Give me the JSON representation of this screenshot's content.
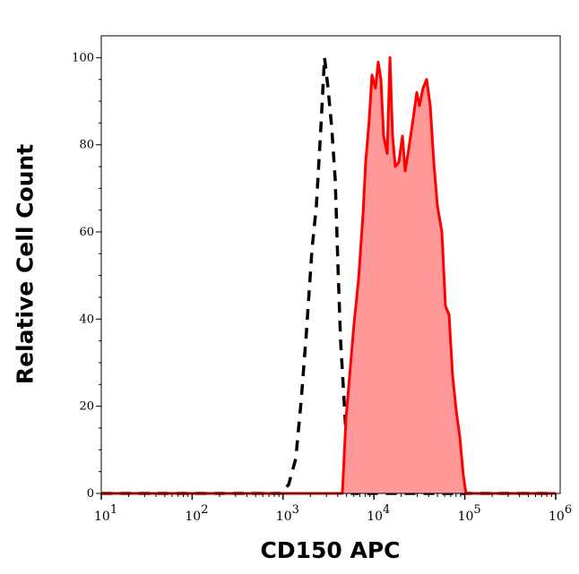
{
  "chart_data": {
    "type": "area",
    "xlabel": "CD150 APC",
    "ylabel": "Relative Cell Count",
    "xscale": "log",
    "xlim": [
      10,
      1000000
    ],
    "ylim": [
      0,
      105
    ],
    "xticks": [
      10,
      100,
      1000,
      10000,
      100000,
      1000000
    ],
    "yticks": [
      0,
      20,
      40,
      60,
      80,
      100
    ],
    "grid": false,
    "series": [
      {
        "style": "dashed",
        "color": "#000000",
        "x": [
          10,
          938,
          1150,
          1380,
          1580,
          1810,
          2080,
          2330,
          2610,
          2860,
          3130,
          3430,
          3750,
          4020,
          4300,
          4710,
          5160,
          5770,
          1000000
        ],
        "y": [
          0,
          0,
          2,
          8,
          21,
          37,
          56,
          66,
          84,
          100,
          93,
          84,
          72,
          52,
          35,
          21,
          6,
          0,
          0
        ]
      },
      {
        "style": "filled",
        "color": "#ff0000",
        "fill": "#ff9999",
        "x": [
          10,
          4500,
          4920,
          5400,
          6040,
          6770,
          7580,
          8110,
          8890,
          9510,
          10400,
          11150,
          11930,
          12780,
          14000,
          15000,
          16040,
          17180,
          18800,
          20600,
          22030,
          24150,
          27050,
          29600,
          31700,
          34700,
          38000,
          41600,
          45600,
          49900,
          55900,
          61200,
          67000,
          73400,
          80400,
          88100,
          96400,
          103000,
          1000000
        ],
        "y": [
          0,
          0,
          17,
          27,
          39,
          49,
          64,
          76,
          86,
          96,
          93,
          99,
          95,
          82,
          78,
          100,
          82,
          75,
          76,
          82,
          74,
          79,
          86,
          92,
          89,
          93,
          95,
          89,
          76,
          66,
          60,
          43,
          41,
          27,
          19,
          13,
          4,
          0,
          0
        ]
      }
    ]
  }
}
